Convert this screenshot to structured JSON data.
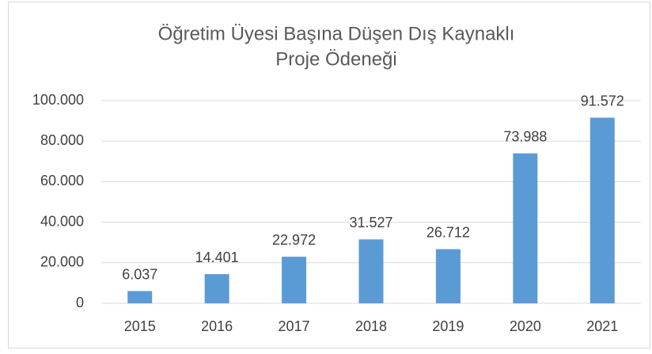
{
  "chart_data": {
    "type": "bar",
    "title": [
      "Öğretim Üyesi Başına Düşen Dış Kaynaklı",
      "Proje Ödeneği"
    ],
    "categories": [
      "2015",
      "2016",
      "2017",
      "2018",
      "2019",
      "2020",
      "2021"
    ],
    "values": [
      6037,
      14401,
      22972,
      31527,
      26712,
      73988,
      91572
    ],
    "value_labels": [
      "6.037",
      "14.401",
      "22.972",
      "31.527",
      "26.712",
      "73.988",
      "91.572"
    ],
    "color": "#5b9bd5",
    "ylim": [
      0,
      100000
    ],
    "yticks": [
      0,
      {
        "value": 20000,
        "label": "20.000"
      },
      {
        "value": 40000,
        "label": "40.000"
      },
      {
        "value": 60000,
        "label": "60.000"
      },
      {
        "value": 80000,
        "label": "80.000"
      },
      {
        "value": 100000,
        "label": "100.000"
      }
    ],
    "grid": true
  }
}
